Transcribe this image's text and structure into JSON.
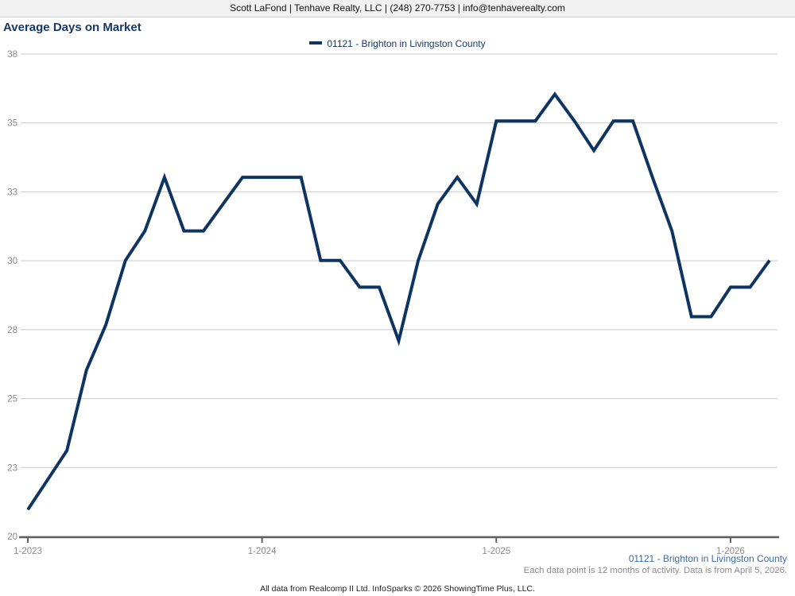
{
  "header": {
    "contact_line": "Scott LaFond | Tenhave Realty, LLC | (248) 270-7753 | info@tenhaverealty.com"
  },
  "title": "Average Days on Market",
  "legend": {
    "label": "01121 - Brighton in Livingston County",
    "swatch_color": "#0e3562"
  },
  "chart_data": {
    "type": "line",
    "title": "Average Days on Market",
    "xlabel": "",
    "ylabel": "",
    "ylim": [
      20,
      38
    ],
    "grid": true,
    "legend_position": "top-center",
    "y_axis_labels": [
      "38",
      "35",
      "33",
      "30",
      "28",
      "25",
      "23",
      "20"
    ],
    "x_tick_labels": [
      "1-2023",
      "1-2024",
      "1-2025",
      "1-2026"
    ],
    "x_tick_month_indices": [
      0,
      12,
      24,
      36
    ],
    "x_labels_monthly": [
      "1-2023",
      "2-2023",
      "3-2023",
      "4-2023",
      "5-2023",
      "6-2023",
      "7-2023",
      "8-2023",
      "9-2023",
      "10-2023",
      "11-2023",
      "12-2023",
      "1-2024",
      "2-2024",
      "3-2024",
      "4-2024",
      "5-2024",
      "6-2024",
      "7-2024",
      "8-2024",
      "9-2024",
      "10-2024",
      "11-2024",
      "12-2024",
      "1-2025",
      "2-2025",
      "3-2025",
      "4-2025",
      "5-2025",
      "6-2025",
      "7-2025",
      "8-2025",
      "9-2025",
      "10-2025",
      "11-2025",
      "12-2025",
      "1-2026",
      "2-2026",
      "3-2026"
    ],
    "series": [
      {
        "name": "01121 - Brighton in Livingston County",
        "color": "#0e3562",
        "values": [
          21.0,
          22.1,
          23.2,
          26.2,
          27.9,
          30.3,
          31.4,
          33.4,
          31.4,
          31.4,
          32.4,
          33.4,
          33.4,
          33.4,
          33.4,
          30.3,
          30.3,
          29.3,
          29.3,
          27.3,
          30.3,
          32.4,
          33.4,
          32.4,
          35.5,
          35.5,
          35.5,
          36.5,
          35.5,
          34.4,
          35.5,
          35.5,
          33.4,
          31.4,
          28.2,
          28.2,
          29.3,
          29.3,
          30.3
        ]
      }
    ]
  },
  "footer": {
    "series_label": "01121 - Brighton in Livingston County",
    "series_label_color": "#3a6ca5",
    "data_note": "Each data point is 12 months of activity. Data is from April 5, 2026.",
    "attribution": "All data from Realcomp II Ltd. InfoSparks © 2026 ShowingTime Plus, LLC."
  },
  "colors": {
    "title_text": "#17386a",
    "legend_text": "#17386a",
    "line": "#0e3562",
    "gridline": "#c9c9c9",
    "axis": "#606060",
    "axis_label_text": "#8a8a8a"
  }
}
